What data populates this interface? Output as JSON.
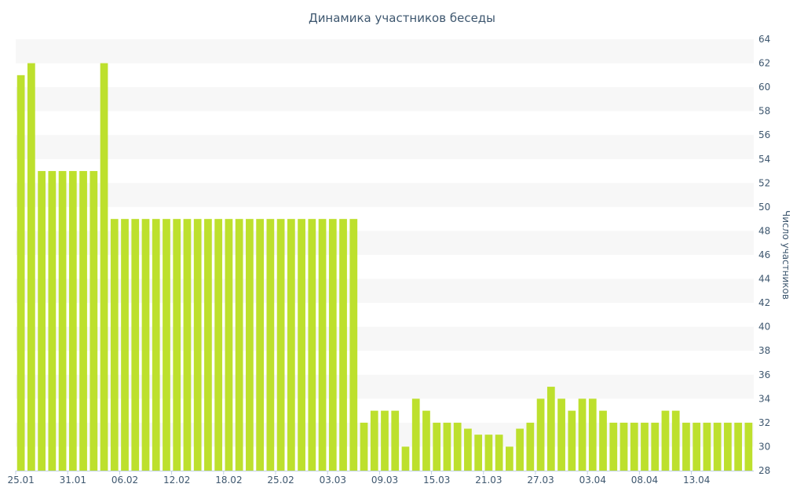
{
  "chart_data": {
    "type": "bar",
    "title": "Динамика участников беседы",
    "xlabel": "",
    "ylabel": "Число участников",
    "ylim": [
      28,
      64
    ],
    "y_ticks": [
      28,
      30,
      32,
      34,
      36,
      38,
      40,
      42,
      44,
      46,
      48,
      50,
      52,
      54,
      56,
      58,
      60,
      62,
      64
    ],
    "x_tick_labels": [
      {
        "index": 0,
        "label": "25.01"
      },
      {
        "index": 5,
        "label": "31.01"
      },
      {
        "index": 10,
        "label": "06.02"
      },
      {
        "index": 15,
        "label": "12.02"
      },
      {
        "index": 20,
        "label": "18.02"
      },
      {
        "index": 25,
        "label": "25.02"
      },
      {
        "index": 30,
        "label": "03.03"
      },
      {
        "index": 35,
        "label": "09.03"
      },
      {
        "index": 40,
        "label": "15.03"
      },
      {
        "index": 45,
        "label": "21.03"
      },
      {
        "index": 50,
        "label": "27.03"
      },
      {
        "index": 55,
        "label": "03.04"
      },
      {
        "index": 60,
        "label": "08.04"
      },
      {
        "index": 65,
        "label": "13.04"
      }
    ],
    "y_axis_position": "right",
    "alternating_bands": true,
    "bar_color": "#bde02d",
    "band_color": "#f7f7f7",
    "text_color": "#3e576f",
    "values": [
      61,
      62,
      53,
      53,
      53,
      53,
      53,
      53,
      62,
      49,
      49,
      49,
      49,
      49,
      49,
      49,
      49,
      49,
      49,
      49,
      49,
      49,
      49,
      49,
      49,
      49,
      49,
      49,
      49,
      49,
      49,
      49,
      49,
      32,
      33,
      33,
      33,
      30,
      34,
      33,
      32,
      32,
      32,
      31.5,
      31,
      31,
      31,
      30,
      31.5,
      32,
      34,
      35,
      34,
      33,
      34,
      34,
      33,
      32,
      32,
      32,
      32,
      32,
      33,
      33,
      32,
      32,
      32,
      32,
      32,
      32,
      32
    ]
  }
}
